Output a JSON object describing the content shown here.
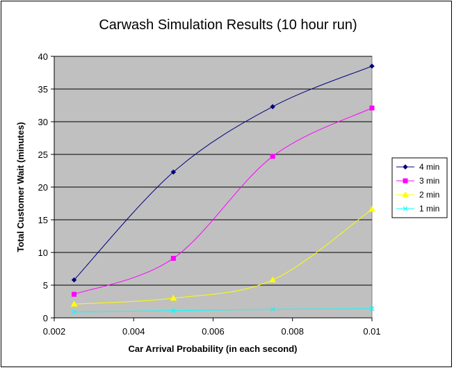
{
  "chart_data": {
    "type": "line",
    "title": "Carwash Simulation Results (10 hour run)",
    "xlabel": "Car Arrival Probability (in each second)",
    "ylabel": "Total Customer Wait (minutes)",
    "xlim": [
      0.002,
      0.01
    ],
    "ylim": [
      0,
      40
    ],
    "xticks": [
      "0.002",
      "0.004",
      "0.006",
      "0.008",
      "0.01"
    ],
    "yticks": [
      "0",
      "5",
      "10",
      "15",
      "20",
      "25",
      "30",
      "35",
      "40"
    ],
    "grid": "horizontal",
    "plot_background": "#C0C0C0",
    "legend_position": "right",
    "x": [
      0.0025,
      0.005,
      0.0075,
      0.01
    ],
    "series": [
      {
        "name": "4 min",
        "color": "#000080",
        "marker": "diamond",
        "values": [
          5.8,
          22.3,
          32.3,
          38.5
        ]
      },
      {
        "name": "3 min",
        "color": "#FF00FF",
        "marker": "square",
        "values": [
          3.6,
          9.1,
          24.7,
          32.1
        ]
      },
      {
        "name": "2 min",
        "color": "#FFFF00",
        "marker": "triangle",
        "values": [
          2.1,
          3.0,
          5.8,
          16.6
        ]
      },
      {
        "name": "1 min",
        "color": "#00FFFF",
        "marker": "x",
        "values": [
          0.9,
          1.1,
          1.3,
          1.4
        ]
      }
    ]
  }
}
